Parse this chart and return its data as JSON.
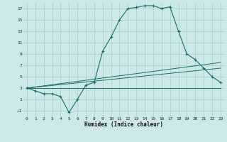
{
  "xlabel": "Humidex (Indice chaleur)",
  "ylabel": "",
  "xlim": [
    -0.5,
    23.5
  ],
  "ylim": [
    -2,
    18
  ],
  "yticks": [
    -1,
    1,
    3,
    5,
    7,
    9,
    11,
    13,
    15,
    17
  ],
  "xticks": [
    0,
    1,
    2,
    3,
    4,
    5,
    6,
    7,
    8,
    9,
    10,
    11,
    12,
    13,
    14,
    15,
    16,
    17,
    18,
    19,
    20,
    21,
    22,
    23
  ],
  "bg_color": "#cde8e8",
  "line_color": "#1a6b6b",
  "grid_color": "#a8cccc",
  "line1_x": [
    0,
    1,
    2,
    3,
    4,
    5,
    6,
    7,
    8,
    9,
    10,
    11,
    12,
    13,
    14,
    15,
    16,
    17,
    18,
    19,
    20,
    21,
    22,
    23
  ],
  "line1_y": [
    3.0,
    2.5,
    2.0,
    2.0,
    1.5,
    -1.3,
    1.0,
    3.5,
    4.0,
    9.5,
    12.0,
    15.0,
    17.0,
    17.2,
    17.5,
    17.5,
    17.0,
    17.3,
    13.0,
    9.0,
    8.0,
    6.5,
    5.0,
    4.0
  ],
  "line2_x": [
    0,
    23
  ],
  "line2_y": [
    3.0,
    3.0
  ],
  "line3_x": [
    0,
    23
  ],
  "line3_y": [
    3.0,
    7.5
  ],
  "line4_x": [
    0,
    23
  ],
  "line4_y": [
    3.0,
    6.5
  ]
}
